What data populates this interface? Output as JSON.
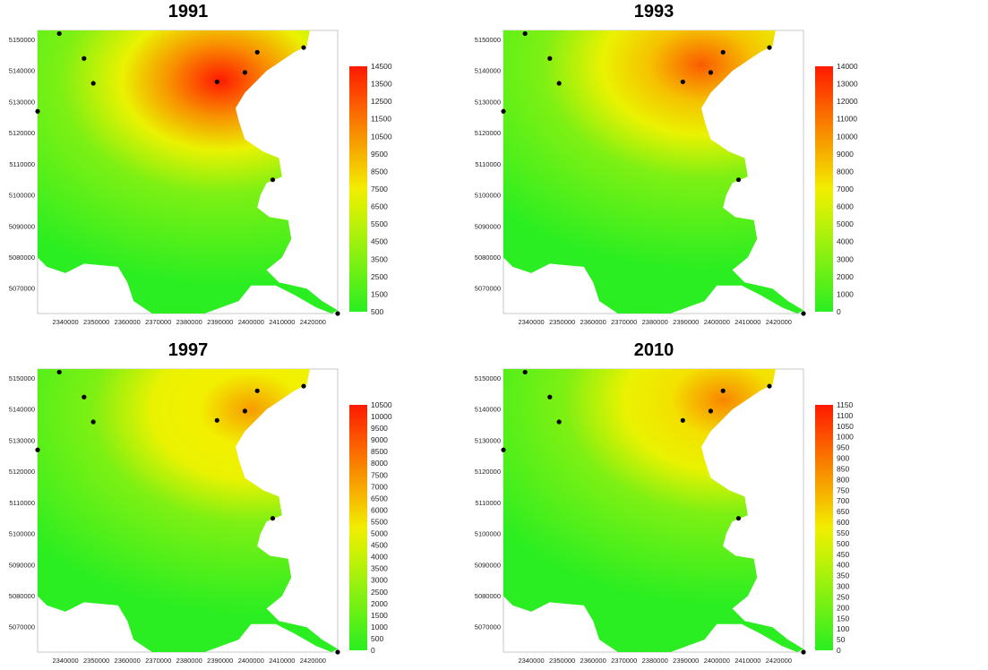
{
  "figure": {
    "panels": [
      {
        "title": "1991",
        "legend_ticks": [
          "500",
          "1500",
          "2500",
          "3500",
          "4500",
          "5500",
          "6500",
          "7500",
          "8500",
          "9500",
          "10500",
          "11500",
          "12500",
          "13500",
          "14500"
        ],
        "hotspot": "2390000, 5137000",
        "intensity": 1.0
      },
      {
        "title": "1993",
        "legend_ticks": [
          "0",
          "1000",
          "2000",
          "3000",
          "4000",
          "5000",
          "6000",
          "7000",
          "8000",
          "9000",
          "10000",
          "11000",
          "12000",
          "13000",
          "14000"
        ],
        "hotspot": "2395000, 5142000",
        "intensity": 0.85
      },
      {
        "title": "1997",
        "legend_ticks": [
          "0",
          "500",
          "1000",
          "1500",
          "2000",
          "2500",
          "3000",
          "3500",
          "4000",
          "4500",
          "5000",
          "5500",
          "6000",
          "6500",
          "7000",
          "7500",
          "8000",
          "8500",
          "9000",
          "9500",
          "10000",
          "10500"
        ],
        "hotspot": "2400000, 5140000",
        "intensity": 0.7
      },
      {
        "title": "2010",
        "legend_ticks": [
          "0",
          "50",
          "100",
          "150",
          "200",
          "250",
          "300",
          "350",
          "400",
          "450",
          "500",
          "550",
          "600",
          "650",
          "700",
          "750",
          "800",
          "850",
          "900",
          "950",
          "1000",
          "1050",
          "1100",
          "1150"
        ],
        "hotspot": "2402000, 5143000",
        "intensity": 0.75
      }
    ],
    "x_ticks": [
      "2340000",
      "2350000",
      "2360000",
      "2370000",
      "2380000",
      "2390000",
      "2400000",
      "2410000",
      "2420000"
    ],
    "y_ticks": [
      "5150000",
      "5140000",
      "5130000",
      "5120000",
      "5110000",
      "5100000",
      "5090000",
      "5080000",
      "5070000"
    ],
    "colors": {
      "low": "#22ee22",
      "mid": "#f2f200",
      "high": "#ff1a00"
    }
  }
}
